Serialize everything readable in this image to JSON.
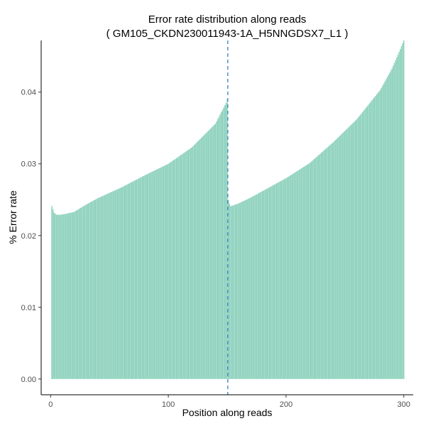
{
  "chart_data": {
    "type": "bar",
    "title": "Error rate distribution along reads",
    "subtitle": "( GM105_CKDN230011943-1A_H5NNGDSX7_L1 )",
    "xlabel": "Position along reads",
    "ylabel": "% Error rate",
    "xlim": [
      -8,
      308
    ],
    "ylim": [
      -0.0022,
      0.0472
    ],
    "x_ticks": [
      0,
      100,
      200,
      300
    ],
    "x_tick_labels": [
      "0",
      "100",
      "200",
      "300"
    ],
    "y_ticks": [
      0.0,
      0.01,
      0.02,
      0.03,
      0.04
    ],
    "y_tick_labels": [
      "0.00",
      "0.01",
      "0.02",
      "0.03",
      "0.04"
    ],
    "grid": false,
    "bar_color": "#66c2a5",
    "bar_opacity": 0.75,
    "vline": {
      "x": 150.5,
      "color": "#3a82c4",
      "style": "dashed"
    },
    "series": [
      {
        "segments": [
          {
            "x_start": 1,
            "x_end": 150,
            "profile_x": [
              1,
              2,
              3,
              5,
              8,
              12,
              20,
              30,
              40,
              60,
              80,
              100,
              120,
              140,
              145,
              149,
              150
            ],
            "profile_y": [
              0.0241,
              0.0237,
              0.0232,
              0.0229,
              0.0229,
              0.023,
              0.0233,
              0.0243,
              0.0252,
              0.0267,
              0.0284,
              0.03,
              0.0323,
              0.0356,
              0.0372,
              0.0385,
              0.039
            ]
          },
          {
            "x_start": 151,
            "x_end": 300,
            "profile_x": [
              151,
              152,
              153,
              155,
              160,
              170,
              180,
              200,
              220,
              240,
              260,
              280,
              290,
              295,
              300
            ],
            "profile_y": [
              0.025,
              0.0244,
              0.0241,
              0.0242,
              0.0245,
              0.0253,
              0.0262,
              0.028,
              0.0301,
              0.033,
              0.0362,
              0.0403,
              0.0433,
              0.0452,
              0.0472
            ]
          }
        ]
      }
    ]
  }
}
